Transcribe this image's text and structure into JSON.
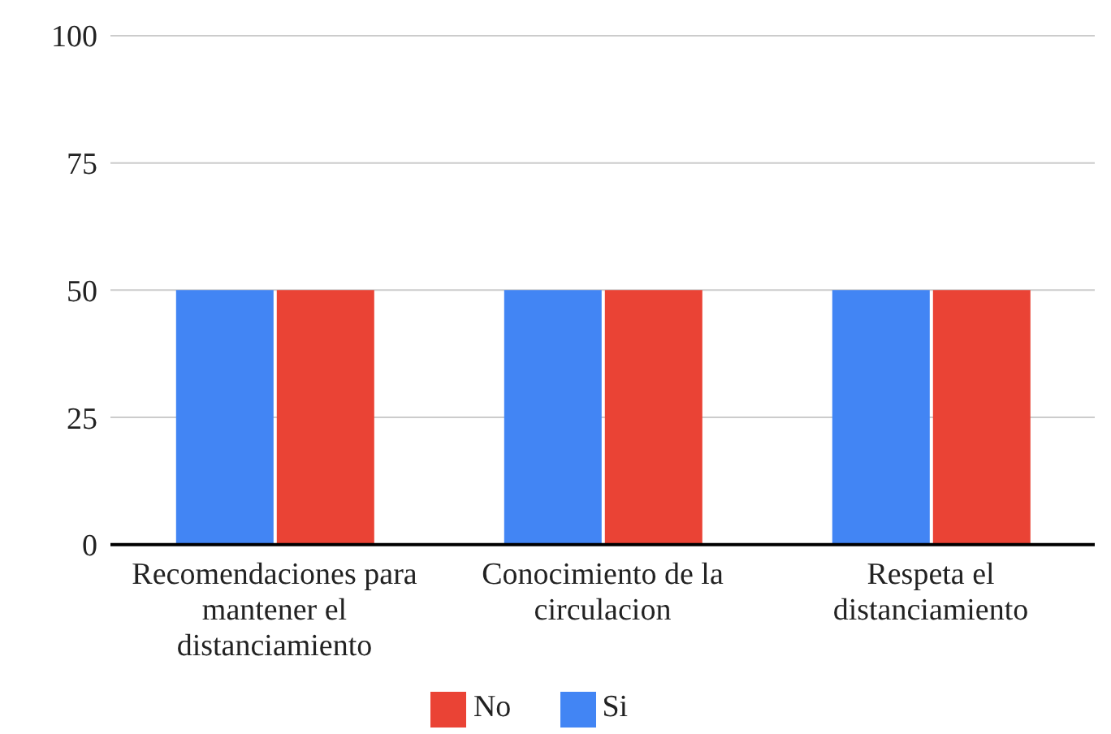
{
  "chart_data": {
    "type": "bar",
    "categories": [
      "Recomendaciones para mantener el distanciamiento",
      "Conocimiento de la circulacion",
      "Respeta el distanciamiento"
    ],
    "series": [
      {
        "name": "Si",
        "color": "#4285f4",
        "values": [
          50,
          50,
          50
        ]
      },
      {
        "name": "No",
        "color": "#ea4335",
        "values": [
          50,
          50,
          50
        ]
      }
    ],
    "ylim": [
      0,
      100
    ],
    "yticks": [
      0,
      25,
      50,
      75,
      100
    ],
    "grid": "y",
    "legend": "bottom"
  }
}
